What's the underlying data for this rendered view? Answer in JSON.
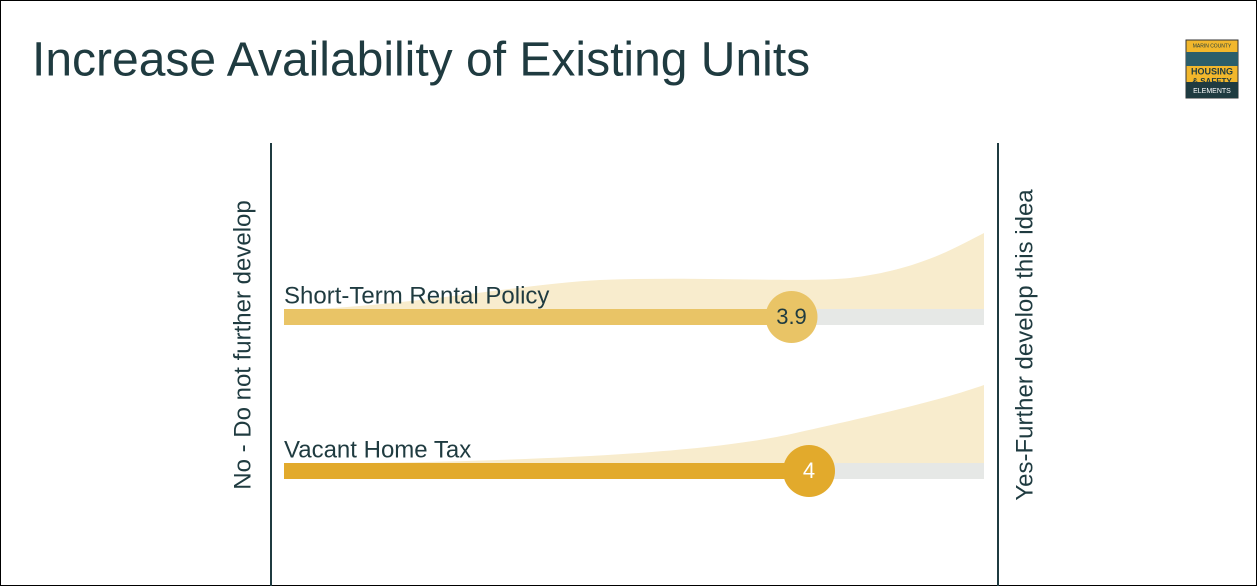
{
  "chart_data": {
    "type": "bar",
    "orientation": "horizontal",
    "title": "Increase Availability of Existing Units",
    "x_label_left": "No - Do not further develop",
    "x_label_right": "Yes-Further develop this idea",
    "categories": [
      "Short-Term Rental Policy",
      "Vacant Home Tax"
    ],
    "values": [
      3.9,
      4
    ],
    "colors": [
      "#e9c466",
      "#e2aa2c"
    ],
    "xlim": [
      1,
      5
    ],
    "logo": [
      "MARIN COUNTY",
      "HOUSING",
      "& SAFETY",
      "ELEMENTS"
    ]
  }
}
